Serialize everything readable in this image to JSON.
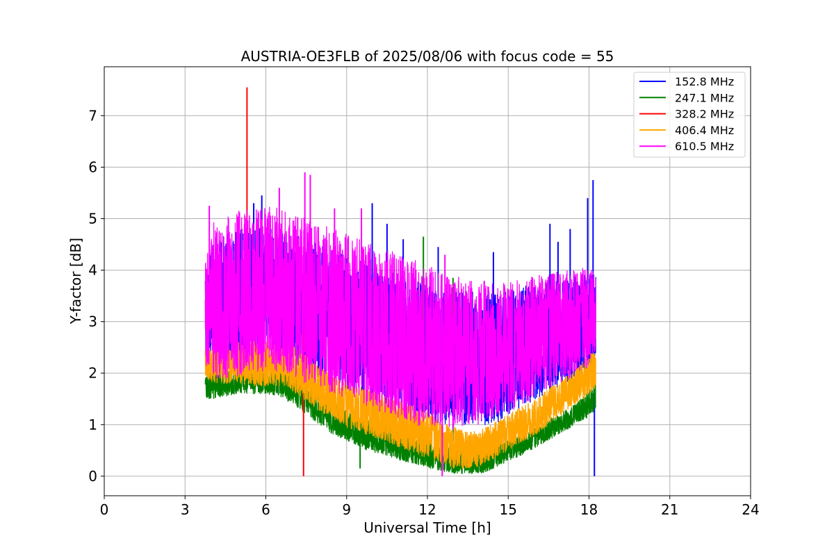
{
  "chart_data": {
    "type": "line",
    "title": "AUSTRIA-OE3FLB of 2025/08/06 with focus code = 55",
    "xlabel": "Universal Time [h]",
    "ylabel": "Y-factor [dB]",
    "xlim": [
      0,
      24
    ],
    "ylim": [
      -0.38,
      7.95
    ],
    "xticks": [
      0,
      3,
      6,
      9,
      12,
      15,
      18,
      21,
      24
    ],
    "yticks": [
      0,
      1,
      2,
      3,
      4,
      5,
      6,
      7
    ],
    "grid": true,
    "legend_position": "top-right",
    "series": [
      {
        "name": "152.8 MHz",
        "color": "#0000ff",
        "x": [
          3.75,
          4.0,
          4.5,
          5.0,
          5.5,
          6.0,
          6.5,
          7.0,
          7.5,
          8.0,
          8.5,
          9.0,
          9.5,
          10.0,
          10.5,
          11.0,
          11.5,
          12.0,
          12.5,
          13.0,
          13.5,
          14.0,
          14.5,
          15.0,
          15.5,
          16.0,
          16.5,
          17.0,
          17.5,
          18.0,
          18.25
        ],
        "center": [
          3.0,
          3.3,
          3.4,
          3.5,
          3.5,
          3.6,
          3.5,
          3.4,
          3.3,
          3.2,
          3.1,
          3.0,
          2.9,
          2.8,
          2.7,
          2.6,
          2.5,
          2.4,
          2.3,
          2.3,
          2.3,
          2.3,
          2.3,
          2.4,
          2.5,
          2.6,
          2.7,
          2.8,
          2.9,
          3.0,
          3.1
        ],
        "amp": [
          0.8,
          1.2,
          1.3,
          1.3,
          1.3,
          1.3,
          1.3,
          1.3,
          1.3,
          1.3,
          1.3,
          1.3,
          1.3,
          1.3,
          1.3,
          1.3,
          1.3,
          1.3,
          1.3,
          1.3,
          1.3,
          1.3,
          1.3,
          1.2,
          1.2,
          1.1,
          1.1,
          1.0,
          1.0,
          1.0,
          0.8
        ],
        "spikes": [
          [
            5.55,
            5.3
          ],
          [
            5.85,
            5.45
          ],
          [
            9.95,
            5.3
          ],
          [
            10.5,
            4.9
          ],
          [
            11.1,
            4.6
          ],
          [
            12.4,
            4.45
          ],
          [
            14.45,
            4.35
          ],
          [
            16.55,
            4.9
          ],
          [
            16.85,
            4.55
          ],
          [
            17.3,
            4.8
          ],
          [
            17.95,
            5.4
          ],
          [
            18.15,
            5.75
          ],
          [
            18.2,
            0.0
          ]
        ]
      },
      {
        "name": "247.1 MHz",
        "color": "#008000",
        "x": [
          3.75,
          4.0,
          4.5,
          5.0,
          5.5,
          6.0,
          6.5,
          7.0,
          7.5,
          8.0,
          8.5,
          9.0,
          9.5,
          10.0,
          10.5,
          11.0,
          11.5,
          12.0,
          12.5,
          13.0,
          13.5,
          14.0,
          14.5,
          15.0,
          15.5,
          16.0,
          16.5,
          17.0,
          17.5,
          18.0,
          18.25
        ],
        "center": [
          1.7,
          1.8,
          1.8,
          1.85,
          1.85,
          1.85,
          1.8,
          1.7,
          1.5,
          1.3,
          1.1,
          1.0,
          0.85,
          0.75,
          0.7,
          0.6,
          0.55,
          0.45,
          0.35,
          0.3,
          0.25,
          0.25,
          0.35,
          0.5,
          0.6,
          0.75,
          0.9,
          1.05,
          1.2,
          1.4,
          1.6
        ],
        "amp": [
          0.2,
          0.3,
          0.25,
          0.25,
          0.25,
          0.25,
          0.25,
          0.3,
          0.3,
          0.3,
          0.3,
          0.3,
          0.3,
          0.3,
          0.3,
          0.3,
          0.3,
          0.3,
          0.25,
          0.25,
          0.2,
          0.2,
          0.2,
          0.2,
          0.2,
          0.2,
          0.2,
          0.2,
          0.2,
          0.25,
          0.3
        ],
        "spikes": [
          [
            11.85,
            4.65
          ],
          [
            12.95,
            3.85
          ],
          [
            9.5,
            0.15
          ]
        ]
      },
      {
        "name": "328.2 MHz",
        "color": "#ff0000",
        "x": [
          3.75,
          18.25
        ],
        "center": [
          2.8,
          2.8
        ],
        "amp": [
          0.0,
          0.0
        ],
        "spikes": [
          [
            5.3,
            7.55
          ],
          [
            7.4,
            0.0
          ]
        ]
      },
      {
        "name": "406.4 MHz",
        "color": "#ffa500",
        "x": [
          3.75,
          4.0,
          4.5,
          5.0,
          5.5,
          6.0,
          6.5,
          7.0,
          7.5,
          8.0,
          8.5,
          9.0,
          9.5,
          10.0,
          10.5,
          11.0,
          11.5,
          12.0,
          12.5,
          13.0,
          13.5,
          14.0,
          14.5,
          15.0,
          15.5,
          16.0,
          16.5,
          17.0,
          17.5,
          18.0,
          18.25
        ],
        "center": [
          2.2,
          2.2,
          2.2,
          2.2,
          2.2,
          2.2,
          2.2,
          2.1,
          1.9,
          1.7,
          1.55,
          1.4,
          1.3,
          1.2,
          1.1,
          1.0,
          0.9,
          0.8,
          0.65,
          0.55,
          0.5,
          0.55,
          0.7,
          0.85,
          1.0,
          1.15,
          1.35,
          1.55,
          1.75,
          1.95,
          2.1
        ],
        "amp": [
          0.3,
          0.4,
          0.4,
          0.4,
          0.45,
          0.45,
          0.45,
          0.45,
          0.45,
          0.45,
          0.45,
          0.45,
          0.45,
          0.45,
          0.45,
          0.45,
          0.45,
          0.45,
          0.4,
          0.4,
          0.35,
          0.35,
          0.35,
          0.35,
          0.35,
          0.35,
          0.35,
          0.35,
          0.35,
          0.4,
          0.4
        ],
        "spikes": [
          [
            6.65,
            2.95
          ],
          [
            7.55,
            2.85
          ]
        ]
      },
      {
        "name": "610.5 MHz",
        "color": "#ff00ff",
        "x": [
          3.75,
          4.0,
          4.5,
          5.0,
          5.5,
          6.0,
          6.5,
          7.0,
          7.5,
          8.0,
          8.5,
          9.0,
          9.5,
          10.0,
          10.5,
          11.0,
          11.5,
          12.0,
          12.5,
          13.0,
          13.5,
          14.0,
          14.5,
          15.0,
          15.5,
          16.0,
          16.5,
          17.0,
          17.5,
          18.0,
          18.25
        ],
        "center": [
          3.2,
          3.4,
          3.5,
          3.55,
          3.6,
          3.65,
          3.6,
          3.5,
          3.4,
          3.3,
          3.2,
          3.1,
          3.0,
          2.9,
          2.8,
          2.7,
          2.6,
          2.5,
          2.45,
          2.4,
          2.4,
          2.4,
          2.45,
          2.5,
          2.6,
          2.7,
          2.8,
          2.9,
          3.0,
          3.1,
          3.2
        ],
        "amp": [
          1.0,
          1.5,
          1.6,
          1.6,
          1.6,
          1.6,
          1.6,
          1.6,
          1.6,
          1.6,
          1.6,
          1.6,
          1.6,
          1.6,
          1.6,
          1.6,
          1.6,
          1.6,
          1.5,
          1.5,
          1.4,
          1.4,
          1.3,
          1.3,
          1.2,
          1.2,
          1.1,
          1.1,
          1.0,
          1.0,
          0.8
        ],
        "spikes": [
          [
            3.9,
            5.25
          ],
          [
            7.45,
            5.9
          ],
          [
            7.65,
            5.85
          ],
          [
            12.55,
            0.0
          ],
          [
            8.55,
            5.2
          ],
          [
            9.55,
            5.2
          ],
          [
            6.5,
            5.6
          ],
          [
            12.65,
            4.3
          ]
        ]
      }
    ]
  }
}
